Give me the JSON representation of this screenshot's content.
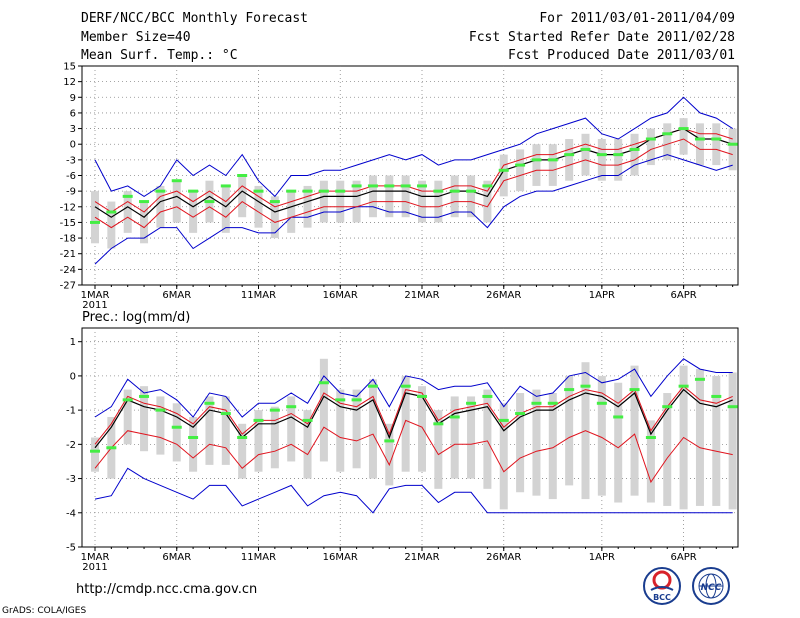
{
  "header": {
    "title": "DERF/NCC/BCC Monthly Forecast",
    "member_size": "Member Size=40",
    "variable": "Mean Surf. Temp.: °C",
    "forecast_period": "For 2011/03/01-2011/04/09",
    "fcst_started": "Fcst Started Refer Date 2011/02/28",
    "fcst_produced": "Fcst Produced Date 2011/03/01"
  },
  "footer": {
    "url": "http://cmdp.ncc.cma.gov.cn",
    "grads_credit": "GrADS: COLA/IGES",
    "logo_bcc_text": "BCC",
    "logo_ncc_text": "NCC"
  },
  "colors": {
    "box": "#d3d3d3",
    "mean": "#000000",
    "spread": "#e0141e",
    "envelope": "#0000cc",
    "marker": "#44ee44",
    "grid": "#888888"
  },
  "chart_data": [
    {
      "type": "line",
      "id": "temp",
      "title": "Mean Surf. Temp.: °C",
      "ylim": [
        -27,
        15
      ],
      "yticks": [
        15,
        12,
        9,
        6,
        3,
        0,
        -3,
        -6,
        -9,
        -12,
        -15,
        -18,
        -21,
        -24,
        -27
      ],
      "xtick_days": [
        0,
        5,
        10,
        15,
        20,
        25,
        31,
        36
      ],
      "xtick_labels": [
        "1MAR",
        "6MAR",
        "11MAR",
        "16MAR",
        "21MAR",
        "26MAR",
        "1APR",
        "6APR"
      ],
      "x_year": "2011",
      "days": 40,
      "series": [
        {
          "name": "max",
          "values": [
            -3,
            -9,
            -8,
            -10,
            -8,
            -3,
            -6,
            -4,
            -6,
            -2,
            -7,
            -10,
            -6,
            -6,
            -5,
            -5,
            -4,
            -3,
            -2,
            -3,
            -2,
            -4,
            -3,
            -3,
            -2,
            -1,
            0,
            2,
            3,
            4,
            5,
            2,
            1,
            3,
            5,
            6,
            9,
            6,
            5,
            3
          ]
        },
        {
          "name": "upper",
          "values": [
            -11,
            -13,
            -11,
            -13,
            -10,
            -9,
            -11,
            -9,
            -11,
            -8,
            -10,
            -12,
            -11,
            -10,
            -9,
            -9,
            -9,
            -8,
            -8,
            -8,
            -9,
            -9,
            -8,
            -8,
            -9,
            -4,
            -3,
            -2,
            -2,
            -1,
            0,
            -1,
            -1,
            0,
            1,
            2,
            3,
            2,
            2,
            1
          ]
        },
        {
          "name": "mean",
          "values": [
            -12,
            -14,
            -12,
            -14,
            -11,
            -10,
            -12,
            -10,
            -12,
            -9,
            -11,
            -13,
            -12,
            -11,
            -10,
            -10,
            -10,
            -9,
            -9,
            -9,
            -10,
            -10,
            -9,
            -9,
            -10,
            -5,
            -4,
            -3,
            -3,
            -2,
            -1,
            -2,
            -2,
            -1,
            1,
            2,
            3,
            1,
            1,
            0
          ]
        },
        {
          "name": "lower",
          "values": [
            -14,
            -16,
            -14,
            -16,
            -13,
            -12,
            -14,
            -12,
            -14,
            -11,
            -13,
            -15,
            -14,
            -13,
            -12,
            -12,
            -12,
            -11,
            -11,
            -11,
            -12,
            -12,
            -11,
            -11,
            -12,
            -7,
            -6,
            -5,
            -5,
            -4,
            -3,
            -4,
            -4,
            -3,
            -1,
            0,
            1,
            -1,
            -1,
            -2
          ]
        },
        {
          "name": "min",
          "values": [
            -23,
            -20,
            -18,
            -18,
            -16,
            -16,
            -20,
            -18,
            -16,
            -16,
            -17,
            -17,
            -14,
            -14,
            -13,
            -13,
            -12,
            -12,
            -13,
            -13,
            -14,
            -14,
            -13,
            -13,
            -16,
            -12,
            -10,
            -9,
            -9,
            -8,
            -7,
            -6,
            -6,
            -4,
            -3,
            -2,
            -3,
            -4,
            -5,
            -4
          ]
        },
        {
          "name": "marker",
          "values": [
            -15,
            -13,
            -10,
            -11,
            -9,
            -7,
            -9,
            -11,
            -8,
            -6,
            -9,
            -11,
            -9,
            -9,
            -9,
            -9,
            -8,
            -8,
            -8,
            -8,
            -8,
            -9,
            -9,
            -9,
            -8,
            -5,
            -4,
            -3,
            -3,
            -2,
            -1,
            -2,
            -2,
            -1,
            1,
            2,
            3,
            1,
            1,
            0
          ]
        },
        {
          "name": "box_top",
          "values": [
            -9,
            -11,
            -9,
            -11,
            -8,
            -7,
            -9,
            -7,
            -8,
            -6,
            -8,
            -10,
            -9,
            -8,
            -7,
            -7,
            -7,
            -6,
            -6,
            -6,
            -7,
            -7,
            -6,
            -6,
            -7,
            -2,
            -1,
            0,
            0,
            1,
            2,
            1,
            1,
            2,
            3,
            4,
            5,
            4,
            4,
            3
          ]
        },
        {
          "name": "box_bottom",
          "values": [
            -19,
            -20,
            -17,
            -19,
            -16,
            -15,
            -17,
            -15,
            -17,
            -14,
            -16,
            -18,
            -17,
            -16,
            -15,
            -15,
            -15,
            -14,
            -14,
            -14,
            -15,
            -15,
            -14,
            -14,
            -15,
            -10,
            -9,
            -8,
            -8,
            -7,
            -6,
            -7,
            -7,
            -6,
            -4,
            -3,
            -2,
            -4,
            -4,
            -5
          ]
        }
      ]
    },
    {
      "type": "line",
      "id": "prec",
      "title": "Prec.: log(mm/d)",
      "ylim": [
        -5,
        1.4
      ],
      "yticks": [
        1,
        0,
        -1,
        -2,
        -3,
        -4,
        -5
      ],
      "xtick_days": [
        0,
        5,
        10,
        15,
        20,
        25,
        31,
        36
      ],
      "xtick_labels": [
        "1MAR",
        "6MAR",
        "11MAR",
        "16MAR",
        "21MAR",
        "26MAR",
        "1APR",
        "6APR"
      ],
      "x_year": "2011",
      "days": 40,
      "series": [
        {
          "name": "max",
          "values": [
            -1.2,
            -0.9,
            -0.1,
            -0.5,
            -0.4,
            -0.7,
            -1.2,
            -0.5,
            -0.6,
            -1.2,
            -0.8,
            -0.8,
            -0.5,
            -0.8,
            0.0,
            -0.5,
            -0.6,
            -0.1,
            -0.9,
            0.0,
            -0.1,
            -0.4,
            -0.3,
            -0.3,
            -0.2,
            -0.9,
            -0.3,
            -0.6,
            -0.5,
            0.0,
            0.1,
            -0.2,
            -0.1,
            0.2,
            -0.6,
            0.0,
            0.5,
            0.2,
            0.1,
            0.1
          ]
        },
        {
          "name": "upper",
          "values": [
            -2.0,
            -1.4,
            -0.6,
            -0.8,
            -0.9,
            -1.1,
            -1.4,
            -0.9,
            -1.0,
            -1.7,
            -1.3,
            -1.3,
            -1.1,
            -1.4,
            -0.5,
            -0.8,
            -0.9,
            -0.6,
            -1.7,
            -0.4,
            -0.5,
            -1.3,
            -1.0,
            -0.9,
            -0.8,
            -1.5,
            -1.1,
            -0.9,
            -0.9,
            -0.6,
            -0.4,
            -0.5,
            -0.8,
            -0.4,
            -1.6,
            -0.9,
            -0.3,
            -0.7,
            -0.8,
            -0.6
          ]
        },
        {
          "name": "mean",
          "values": [
            -2.1,
            -1.5,
            -0.7,
            -0.9,
            -1.0,
            -1.2,
            -1.5,
            -1.0,
            -1.1,
            -1.8,
            -1.4,
            -1.4,
            -1.2,
            -1.5,
            -0.6,
            -0.9,
            -1.0,
            -0.7,
            -1.8,
            -0.5,
            -0.6,
            -1.4,
            -1.1,
            -1.0,
            -0.9,
            -1.6,
            -1.2,
            -1.0,
            -1.0,
            -0.7,
            -0.5,
            -0.6,
            -0.9,
            -0.5,
            -1.7,
            -1.0,
            -0.4,
            -0.8,
            -0.9,
            -0.7
          ]
        },
        {
          "name": "lower",
          "values": [
            -2.7,
            -2.1,
            -1.6,
            -1.7,
            -1.8,
            -2.0,
            -2.4,
            -2.0,
            -2.1,
            -2.7,
            -2.3,
            -2.2,
            -2.0,
            -2.3,
            -1.5,
            -1.8,
            -1.9,
            -1.7,
            -2.6,
            -1.3,
            -1.5,
            -2.3,
            -2.0,
            -2.0,
            -1.9,
            -2.8,
            -2.4,
            -2.2,
            -2.1,
            -1.8,
            -1.6,
            -1.8,
            -2.1,
            -1.7,
            -3.1,
            -2.4,
            -1.8,
            -2.1,
            -2.2,
            -2.3
          ]
        },
        {
          "name": "min",
          "values": [
            -3.6,
            -3.5,
            -2.7,
            -3.0,
            -3.2,
            -3.4,
            -3.6,
            -3.2,
            -3.2,
            -3.8,
            -3.6,
            -3.4,
            -3.2,
            -3.8,
            -3.5,
            -3.4,
            -3.5,
            -4.0,
            -3.3,
            -3.2,
            -3.2,
            -3.7,
            -3.4,
            -3.4,
            -4.0,
            -4.0,
            -4.0,
            -4.0,
            -4.0,
            -4.0,
            -4.0,
            -4.0,
            -4.0,
            -4.0,
            -4.0,
            -4.0,
            -4.0,
            -4.0,
            -4.0,
            -4.0
          ]
        },
        {
          "name": "marker",
          "values": [
            -2.2,
            -2.1,
            -0.7,
            -0.6,
            -1.0,
            -1.5,
            -1.8,
            -0.8,
            -1.1,
            -1.8,
            -1.3,
            -1.0,
            -0.9,
            -1.3,
            -0.2,
            -0.7,
            -0.7,
            -0.3,
            -1.9,
            -0.3,
            -0.6,
            -1.4,
            -1.2,
            -0.8,
            -0.6,
            -1.3,
            -1.1,
            -0.8,
            -0.8,
            -0.4,
            -0.3,
            -0.8,
            -1.2,
            -0.4,
            -1.8,
            -0.9,
            -0.3,
            -0.1,
            -0.6,
            -0.9
          ]
        },
        {
          "name": "box_top",
          "values": [
            -1.8,
            -1.2,
            -0.4,
            -0.3,
            -0.6,
            -0.8,
            -1.2,
            -0.6,
            -0.6,
            -1.4,
            -1.0,
            -0.9,
            -0.6,
            -1.0,
            0.5,
            -0.4,
            -0.4,
            -0.1,
            -1.4,
            0.0,
            -0.3,
            -1.0,
            -0.6,
            -0.6,
            -0.4,
            -0.8,
            -0.5,
            -0.4,
            -0.5,
            0.0,
            0.4,
            0.0,
            -0.2,
            0.3,
            -1.3,
            -0.5,
            0.3,
            0.2,
            0.0,
            0.1
          ]
        },
        {
          "name": "box_bottom",
          "values": [
            -2.8,
            -3.0,
            -2.0,
            -2.2,
            -2.3,
            -2.5,
            -2.8,
            -2.6,
            -2.6,
            -3.0,
            -2.8,
            -2.7,
            -2.5,
            -3.0,
            -2.5,
            -2.8,
            -2.7,
            -3.0,
            -3.2,
            -2.8,
            -2.8,
            -3.3,
            -3.0,
            -3.0,
            -3.3,
            -3.9,
            -3.4,
            -3.5,
            -3.6,
            -3.2,
            -3.6,
            -3.5,
            -3.7,
            -3.5,
            -3.7,
            -3.8,
            -3.9,
            -3.8,
            -3.8,
            -3.9
          ]
        }
      ]
    }
  ]
}
